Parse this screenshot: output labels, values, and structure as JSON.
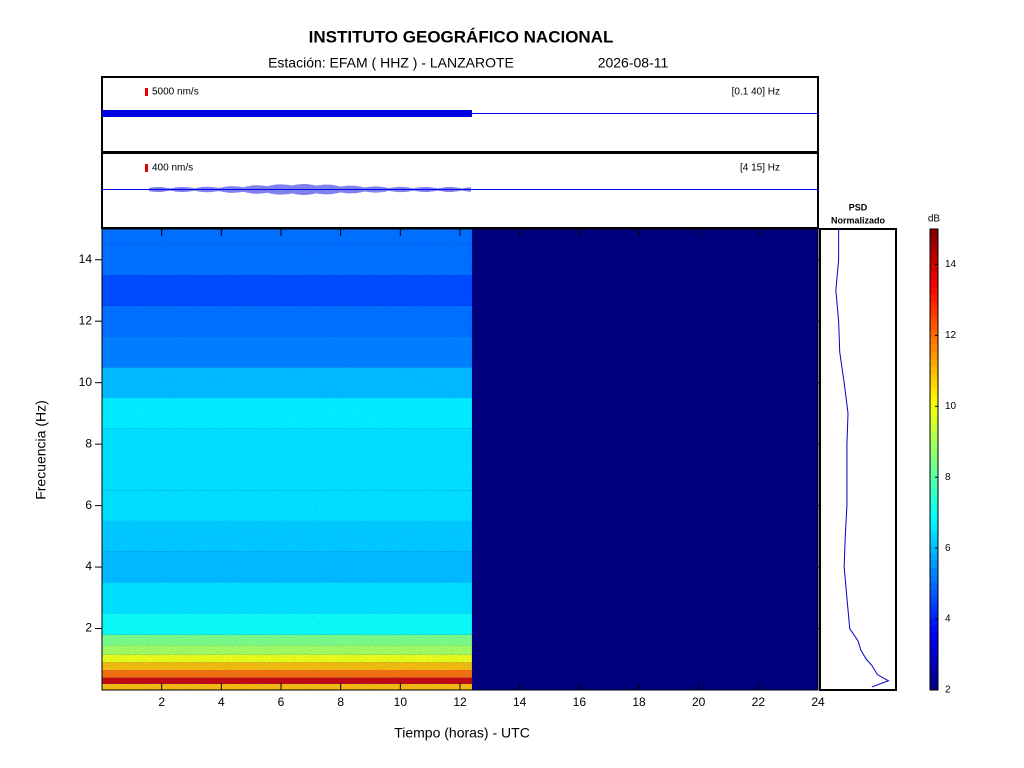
{
  "chart_data": {
    "type": "spectrogram",
    "title": "INSTITUTO GEOGRÁFICO NACIONAL",
    "station": "Estación:  EFAM ( HHZ ) - LANZAROTE",
    "date": "2026-08-11",
    "x_label": "Tiempo (horas) - UTC",
    "y_label": "Frecuencia  (Hz)",
    "xlim": [
      0,
      24
    ],
    "xticks": [
      2,
      4,
      6,
      8,
      10,
      12,
      14,
      16,
      18,
      20,
      22,
      24
    ],
    "ylim": [
      0,
      15
    ],
    "yticks": [
      2,
      4,
      6,
      8,
      10,
      12,
      14
    ],
    "data_end": 12.4,
    "traces": [
      {
        "scale": "5000 nm/s",
        "band": "[0.1 40] Hz"
      },
      {
        "scale": "400 nm/s",
        "band": "[4 15] Hz"
      }
    ],
    "psd_label": [
      "PSD",
      "Normalizado"
    ],
    "colorbar_label": "dB",
    "clim": [
      2,
      15
    ],
    "cticks": [
      2,
      4,
      6,
      8,
      10,
      12,
      14
    ],
    "colormap": "jet",
    "spectrum": {
      "frequencies": [
        0.1,
        0.3,
        0.5,
        0.8,
        1,
        1.3,
        1.6,
        2,
        3,
        4,
        5,
        6,
        7,
        8,
        9,
        10,
        11,
        12,
        13,
        14,
        15
      ],
      "db": [
        11,
        14,
        12,
        11,
        10,
        9,
        8.5,
        7,
        6.5,
        6,
        6.2,
        6.5,
        6.5,
        6.5,
        6.7,
        6,
        5.2,
        5,
        4.5,
        5,
        5
      ]
    }
  }
}
